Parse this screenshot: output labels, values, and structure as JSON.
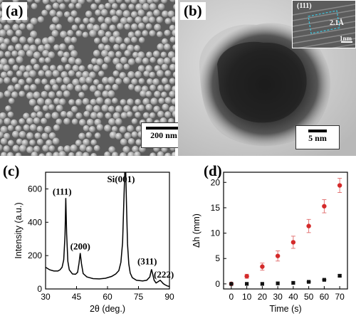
{
  "panels": {
    "a": {
      "label": "(a)",
      "scale_label": "200 nm"
    },
    "b": {
      "label": "(b)",
      "scale_label": "5 nm",
      "inset_plane": "(111)",
      "inset_spacing": "2.1Å",
      "inset_scale": "1nm"
    },
    "c": {
      "label": "(c)"
    },
    "d": {
      "label": "(d)"
    }
  },
  "chart_data": [
    {
      "type": "line",
      "panel": "c",
      "xlabel": "2θ (deg.)",
      "ylabel": "Intensity (a.u.)",
      "xlim": [
        30,
        90
      ],
      "ylim": [
        0,
        700
      ],
      "xticks": [
        30,
        45,
        60,
        75,
        90
      ],
      "yticks": [
        0,
        200,
        400,
        600
      ],
      "line_color": "#000000",
      "grid": false,
      "x": [
        30,
        32,
        34,
        36,
        37,
        38,
        38.8,
        39.4,
        39.8,
        40.2,
        40.8,
        41.5,
        43,
        44.5,
        45.5,
        46.2,
        46.8,
        47.4,
        48.2,
        50,
        53,
        56,
        59,
        62,
        64,
        65.5,
        66.5,
        67.3,
        67.9,
        68.4,
        68.8,
        69.2,
        69.7,
        70.3,
        71,
        72,
        74,
        77,
        79,
        80.5,
        81.3,
        81.9,
        82.6,
        83.5,
        84.5,
        85.5,
        86.3,
        87,
        88,
        89,
        90
      ],
      "y": [
        130,
        115,
        108,
        108,
        115,
        130,
        175,
        320,
        545,
        330,
        165,
        115,
        90,
        88,
        100,
        155,
        215,
        150,
        92,
        72,
        62,
        60,
        64,
        75,
        90,
        110,
        160,
        280,
        520,
        720,
        720,
        500,
        270,
        150,
        95,
        68,
        52,
        48,
        52,
        72,
        118,
        88,
        52,
        36,
        44,
        52,
        42,
        32,
        24,
        18,
        15
      ],
      "annotations": [
        {
          "text": "(111)",
          "x": 39.4,
          "y": 545
        },
        {
          "text": "(200)",
          "x": 46.8,
          "y": 215
        },
        {
          "text": "Si(001)",
          "x": 68.6,
          "y": 700
        },
        {
          "text": "(311)",
          "x": 81.3,
          "y": 118
        },
        {
          "text": "(222)",
          "x": 85.2,
          "y": 52
        }
      ]
    },
    {
      "type": "scatter",
      "panel": "d",
      "xlabel": "Time (s)",
      "ylabel": "Δh (mm)",
      "xlim": [
        -5,
        75
      ],
      "ylim": [
        -1,
        22
      ],
      "xticks": [
        0,
        10,
        20,
        30,
        40,
        50,
        60,
        70
      ],
      "yticks": [
        0,
        5,
        10,
        15,
        20
      ],
      "grid": false,
      "series": [
        {
          "color": "#d42a2a",
          "marker": "circle",
          "x": [
            0,
            10,
            20,
            30,
            40,
            50,
            60,
            70
          ],
          "y": [
            0,
            1.5,
            3.4,
            5.5,
            8.2,
            11.4,
            15.3,
            19.4
          ],
          "err": [
            0,
            0.4,
            0.7,
            1.0,
            1.2,
            1.3,
            1.3,
            1.4
          ]
        },
        {
          "color": "#111111",
          "marker": "square",
          "x": [
            0,
            10,
            20,
            30,
            40,
            50,
            60,
            70
          ],
          "y": [
            0,
            0,
            0,
            0.1,
            0.2,
            0.4,
            0.8,
            1.6
          ],
          "err": [
            0,
            0,
            0,
            0,
            0,
            0.1,
            0.1,
            0.2
          ]
        }
      ]
    }
  ]
}
